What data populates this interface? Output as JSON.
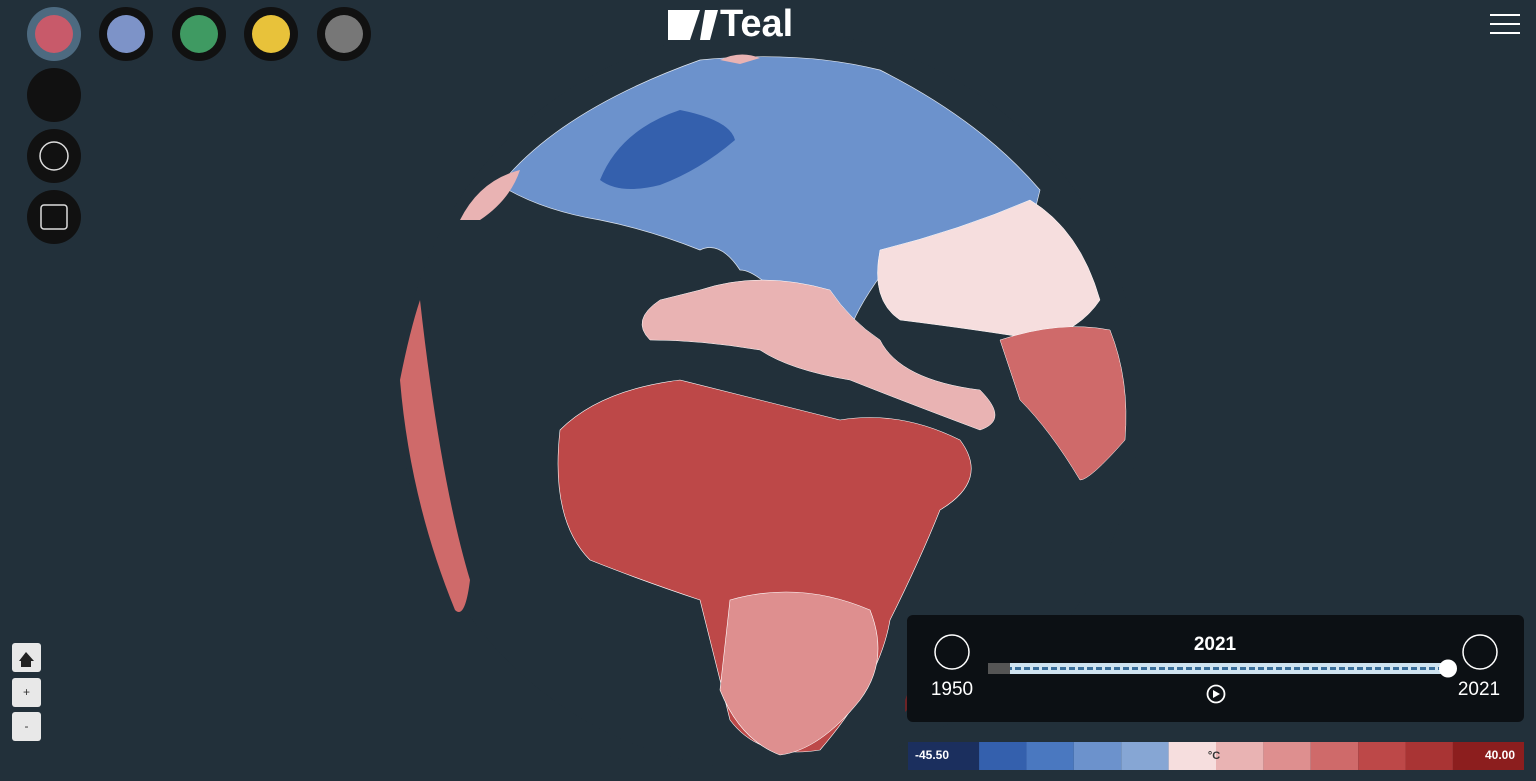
{
  "header": {
    "logo": "Teal"
  },
  "controls": {
    "zoom_in": "+",
    "zoom_out": "-"
  },
  "timeline": {
    "current": "2021",
    "start": "1950",
    "end": "2021"
  },
  "legend": {
    "min": "-45.50",
    "unit": "°C",
    "max": "40.00",
    "colors": [
      "#1b2f5e",
      "#3460ad",
      "#4a78c0",
      "#6c92cc",
      "#86a6d4",
      "#f6dede",
      "#e9b3b3",
      "#de8f8f",
      "#cf6a6a",
      "#bd4848",
      "#a93434",
      "#8c1e1e"
    ]
  }
}
